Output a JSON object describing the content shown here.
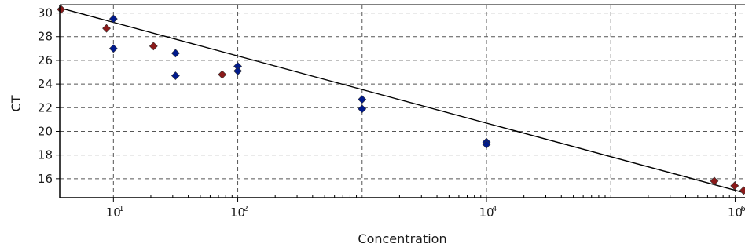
{
  "chart_data": {
    "type": "scatter",
    "title": "",
    "xlabel": "Concentration",
    "ylabel": "CT",
    "x_scale": "log",
    "xlim": [
      3.7,
      1200000.0
    ],
    "ylim": [
      14.4,
      30.7
    ],
    "grid": true,
    "x_ticks": [
      {
        "value": 10,
        "label": "10",
        "exp": "1"
      },
      {
        "value": 100,
        "label": "10",
        "exp": "2"
      },
      {
        "value": 10000,
        "label": "10",
        "exp": "4"
      },
      {
        "value": 1000000,
        "label": "10",
        "exp": "6"
      }
    ],
    "x_gridlines": [
      10,
      100,
      1000,
      10000,
      100000,
      1000000
    ],
    "y_ticks": [
      16,
      18,
      20,
      22,
      24,
      26,
      28,
      30
    ],
    "series": [
      {
        "color": "#001a8c",
        "marker": "diamond",
        "points": [
          {
            "x": 10,
            "y": 29.5
          },
          {
            "x": 10,
            "y": 27.0
          },
          {
            "x": 31.6,
            "y": 26.6
          },
          {
            "x": 31.6,
            "y": 24.7
          },
          {
            "x": 100,
            "y": 25.5
          },
          {
            "x": 100,
            "y": 25.1
          },
          {
            "x": 1000,
            "y": 22.7
          },
          {
            "x": 1000,
            "y": 21.9
          },
          {
            "x": 10000,
            "y": 19.1
          },
          {
            "x": 10000,
            "y": 18.9
          }
        ]
      },
      {
        "color": "#8b1a1a",
        "marker": "diamond",
        "points": [
          {
            "x": 3.8,
            "y": 30.3
          },
          {
            "x": 8.8,
            "y": 28.7
          },
          {
            "x": 21,
            "y": 27.2
          },
          {
            "x": 75,
            "y": 24.8
          },
          {
            "x": 680000,
            "y": 15.8
          },
          {
            "x": 990000,
            "y": 15.4
          },
          {
            "x": 1170000,
            "y": 15.0
          }
        ]
      }
    ],
    "trendline": {
      "color": "#000000",
      "from": {
        "x": 3.8,
        "y": 30.4
      },
      "to": {
        "x": 1200000,
        "y": 14.8
      }
    }
  }
}
